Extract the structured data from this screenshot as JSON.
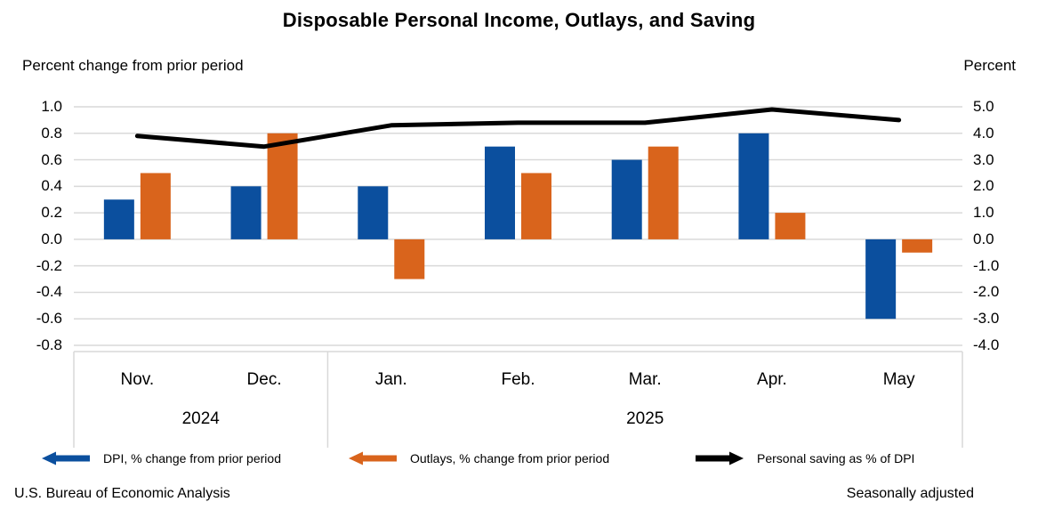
{
  "title": "Disposable Personal Income, Outlays, and Saving",
  "axes": {
    "left_title": "Percent change from prior period",
    "right_title": "Percent",
    "left_ticks": [
      "1.0",
      "0.8",
      "0.6",
      "0.4",
      "0.2",
      "0.0",
      "-0.2",
      "-0.4",
      "-0.6",
      "-0.8"
    ],
    "right_ticks": [
      "5.0",
      "4.0",
      "3.0",
      "2.0",
      "1.0",
      "0.0",
      "-1.0",
      "-2.0",
      "-3.0",
      "-4.0"
    ]
  },
  "colors": {
    "dpi_bar": "#0b4f9e",
    "outlays_bar": "#d9641c",
    "saving_line": "#000000",
    "gridline": "#d9d9d9"
  },
  "legend": [
    {
      "label": "DPI, % change from prior period",
      "color": "#0b4f9e",
      "arrow": "left"
    },
    {
      "label": "Outlays, % change from prior period",
      "color": "#d9641c",
      "arrow": "left"
    },
    {
      "label": "Personal saving as % of DPI",
      "color": "#000000",
      "arrow": "right"
    }
  ],
  "footer": {
    "source": "U.S. Bureau of Economic Analysis",
    "note": "Seasonally adjusted"
  },
  "chart_data": {
    "type": "combo: grouped bar + line",
    "categories": [
      "Nov.",
      "Dec.",
      "Jan.",
      "Feb.",
      "Mar.",
      "Apr.",
      "May"
    ],
    "year_groups": [
      {
        "label": "2024",
        "count": 2
      },
      {
        "label": "2025",
        "count": 5
      }
    ],
    "series": [
      {
        "name": "DPI, % change from prior period",
        "type": "bar",
        "axis": "left",
        "values": [
          0.3,
          0.4,
          0.4,
          0.7,
          0.6,
          0.8,
          -0.6
        ]
      },
      {
        "name": "Outlays, % change from prior period",
        "type": "bar",
        "axis": "left",
        "values": [
          0.5,
          0.8,
          -0.3,
          0.5,
          0.7,
          0.2,
          -0.1
        ]
      },
      {
        "name": "Personal saving as % of DPI",
        "type": "line",
        "axis": "right",
        "values": [
          3.9,
          3.5,
          4.3,
          4.4,
          4.4,
          4.9,
          4.5
        ]
      }
    ],
    "left_axis": {
      "title": "Percent change from prior period",
      "min": -0.8,
      "max": 1.0,
      "step": 0.2
    },
    "right_axis": {
      "title": "Percent",
      "min": -4.0,
      "max": 5.0,
      "step": 1.0
    },
    "grid": true,
    "legend_position": "bottom"
  }
}
